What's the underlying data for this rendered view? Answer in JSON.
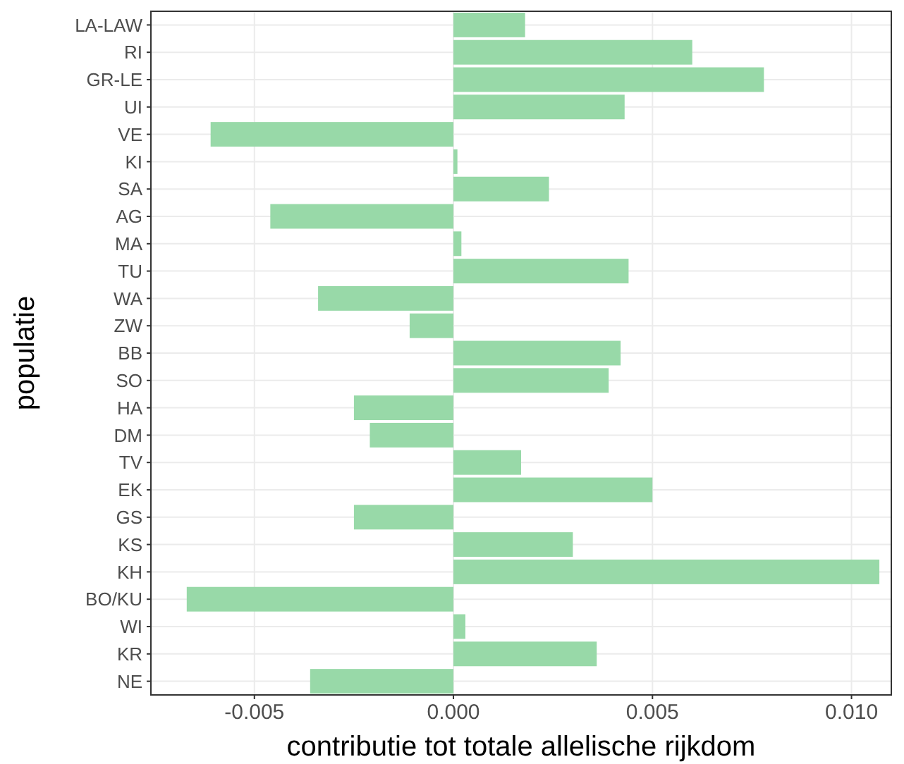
{
  "chart_data": {
    "type": "bar",
    "orientation": "horizontal",
    "xlabel": "contributie tot totale allelische rijkdom",
    "ylabel": "populatie",
    "categories": [
      "LA-LAW",
      "RI",
      "GR-LE",
      "UI",
      "VE",
      "KI",
      "SA",
      "AG",
      "MA",
      "TU",
      "WA",
      "ZW",
      "BB",
      "SO",
      "HA",
      "DM",
      "TV",
      "EK",
      "GS",
      "KS",
      "KH",
      "BO/KU",
      "WI",
      "KR",
      "NE"
    ],
    "values": [
      0.0018,
      0.006,
      0.0078,
      0.0043,
      -0.0061,
      0.0001,
      0.0024,
      -0.0046,
      0.0002,
      0.0044,
      -0.0034,
      -0.0011,
      0.0042,
      0.0039,
      -0.0025,
      -0.0021,
      0.0017,
      0.005,
      -0.0025,
      0.003,
      0.0107,
      -0.0067,
      0.0003,
      0.0036,
      -0.0036
    ],
    "color": "#98d9a8",
    "xlim": [
      -0.0076,
      0.011
    ],
    "xticks": [
      {
        "value": -0.005,
        "label": "-0.005"
      },
      {
        "value": 0,
        "label": "0.000"
      },
      {
        "value": 0.005,
        "label": "0.005"
      },
      {
        "value": 0.01,
        "label": "0.010"
      }
    ],
    "grid": true
  }
}
